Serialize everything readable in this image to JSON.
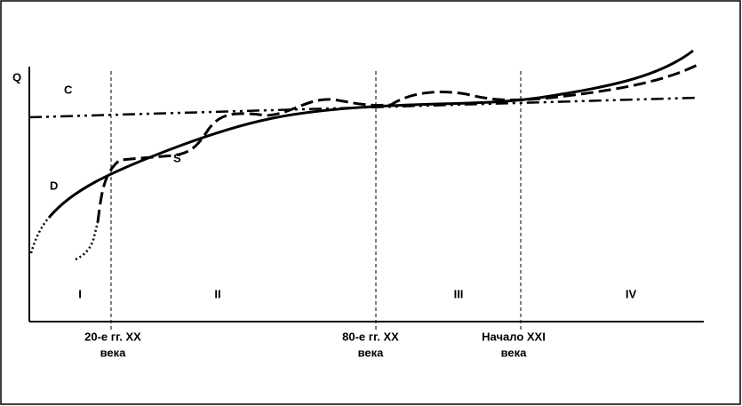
{
  "axis": {
    "y_label": "Q"
  },
  "curves": {
    "c": "C",
    "d": "D",
    "s": "S"
  },
  "periods": [
    "I",
    "II",
    "III",
    "IV"
  ],
  "boundaries": [
    {
      "line1": "20-е гг. XX",
      "line2": "века"
    },
    {
      "line1": "80-е гг. XX",
      "line2": "века"
    },
    {
      "line1": "Начало XXI",
      "line2": "века"
    }
  ]
}
